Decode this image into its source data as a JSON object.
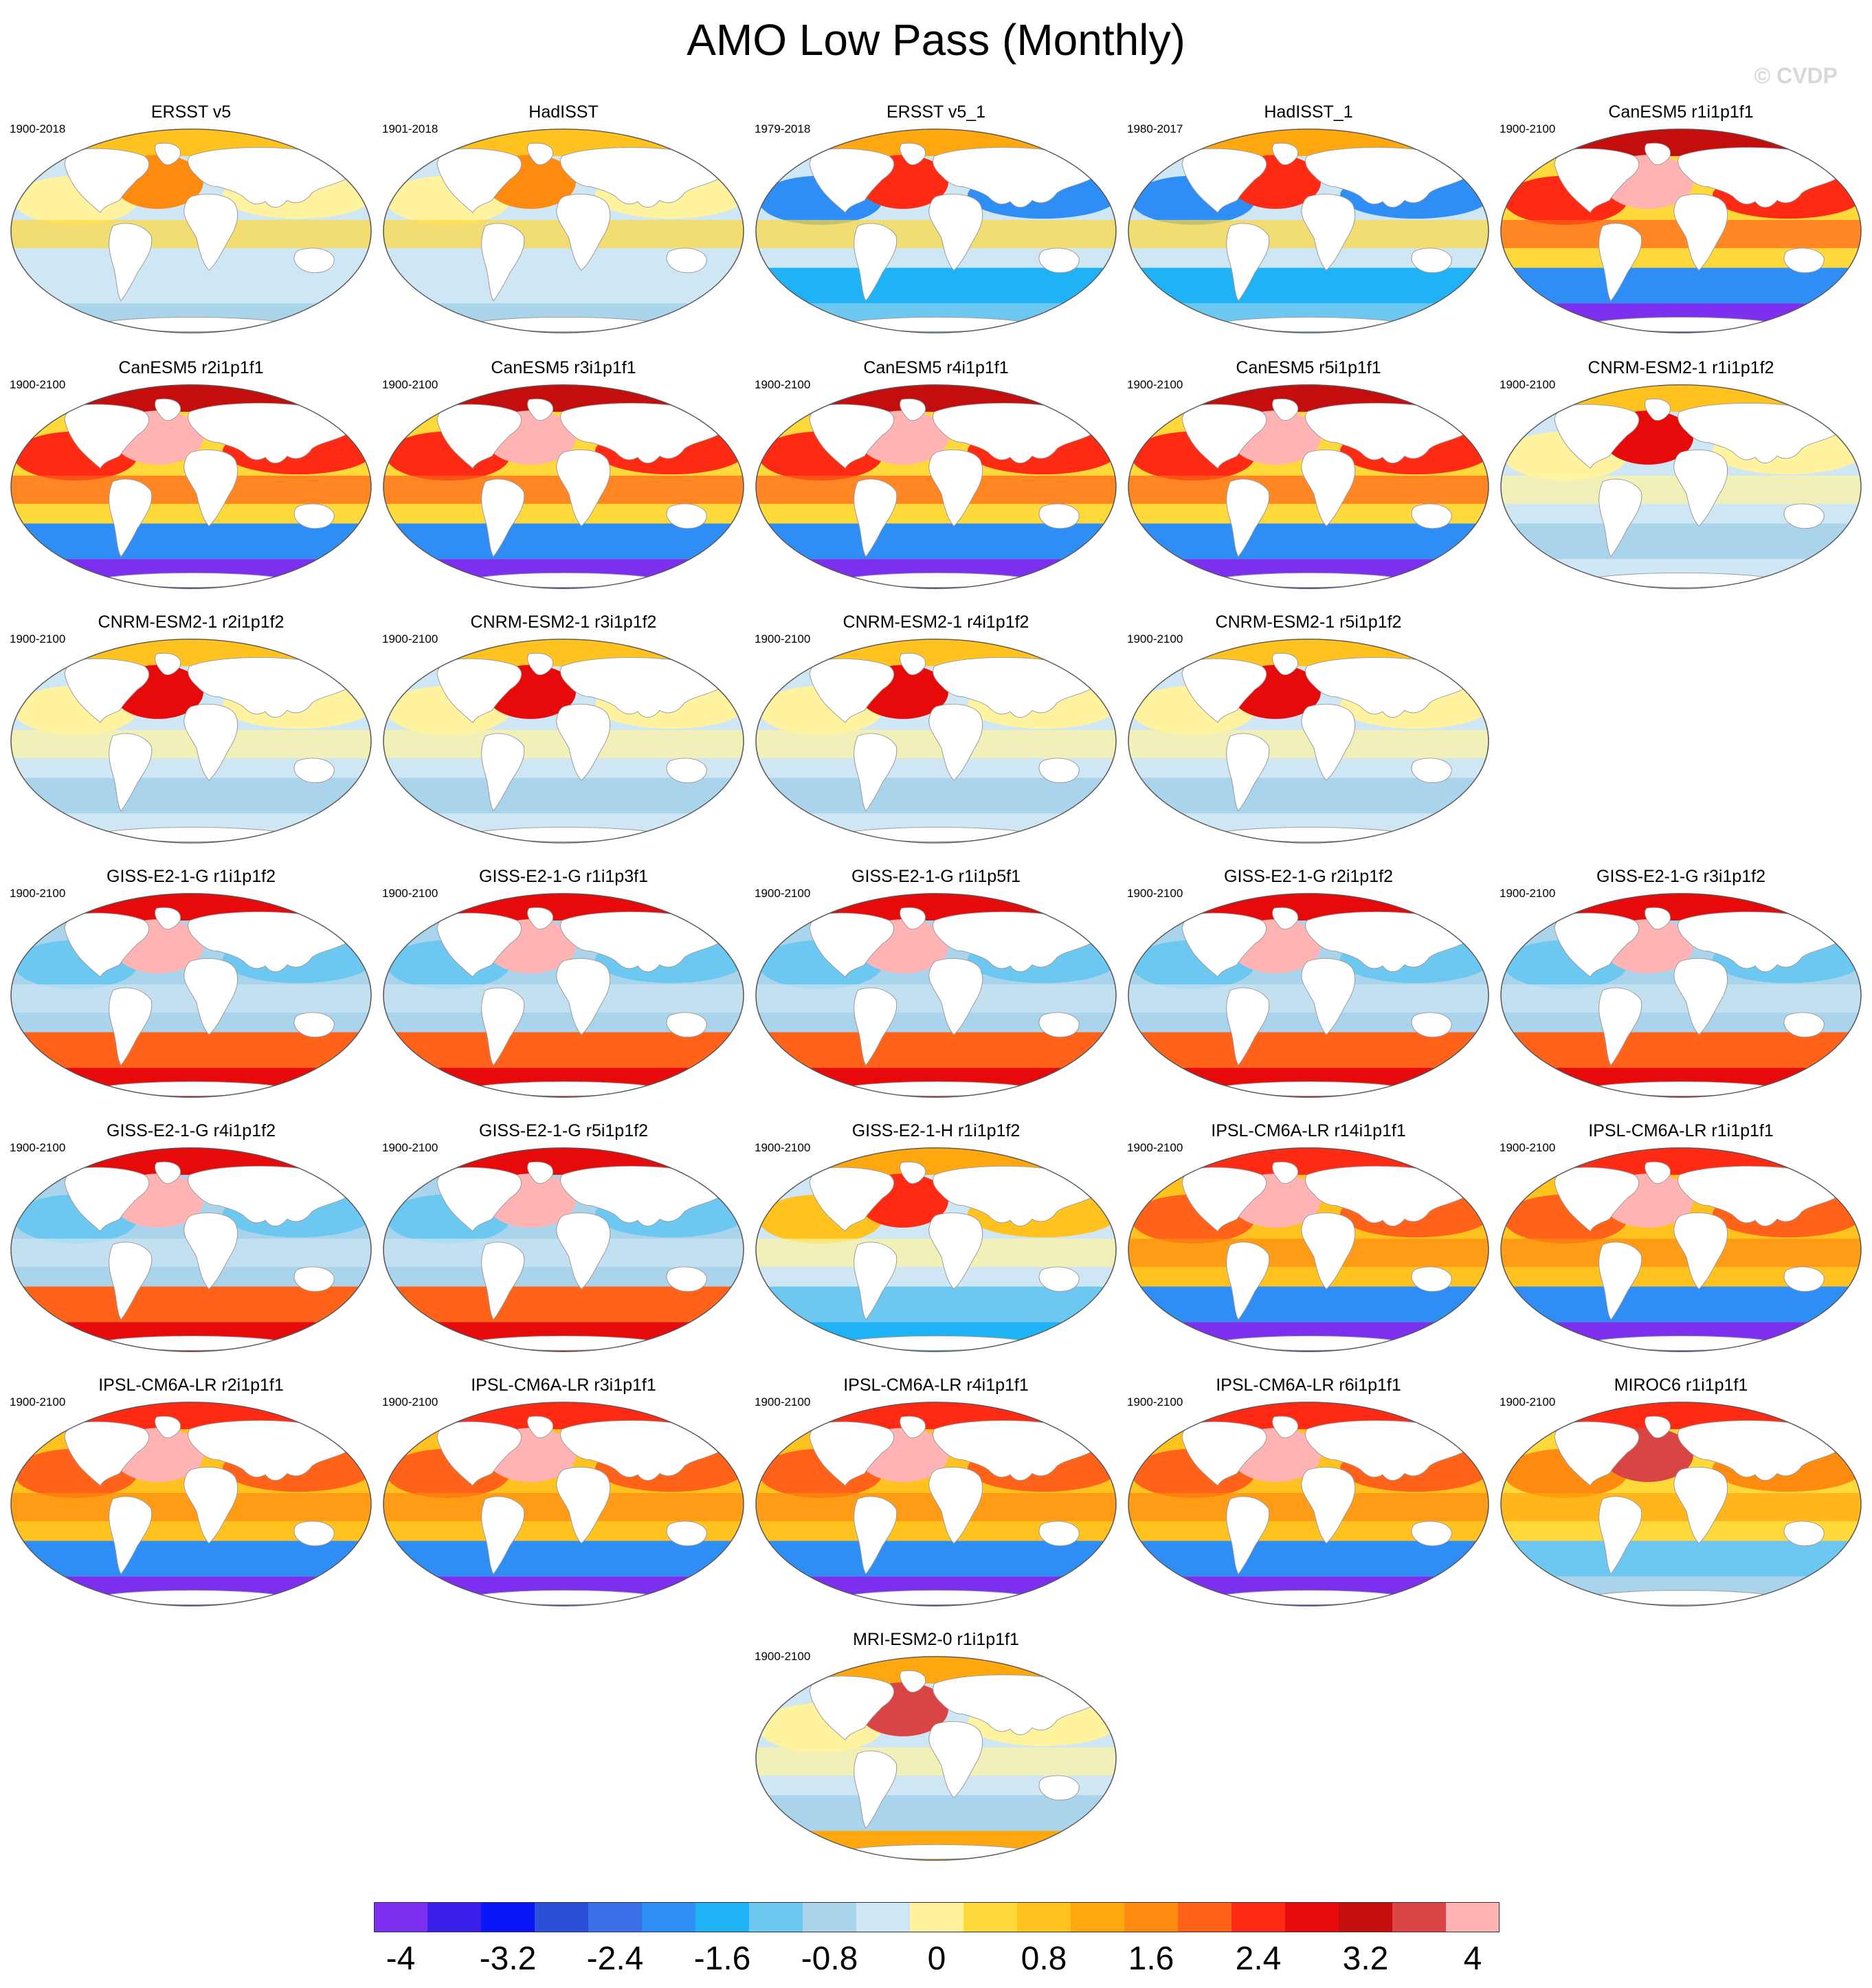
{
  "title": "AMO Low Pass (Monthly)",
  "watermark": "© CVDP",
  "colorbar": {
    "colors": [
      "#7d2ff0",
      "#3a1fe8",
      "#0a16f5",
      "#2a4fd9",
      "#3a6fe8",
      "#2f8ef5",
      "#1fb3f5",
      "#6cc8f0",
      "#a9d4ec",
      "#cfe6f4",
      "#fff3a0",
      "#ffd93a",
      "#ffc21f",
      "#ffa70f",
      "#ff8a10",
      "#ff6218",
      "#ff2a14",
      "#e60a0a",
      "#c40d0d",
      "#d94444",
      "#ffb3b3"
    ],
    "tick_labels": [
      "-4",
      "-3.2",
      "-2.4",
      "-1.6",
      "-0.8",
      "0",
      "0.8",
      "1.6",
      "2.4",
      "3.2",
      "4"
    ],
    "range": [
      -4.2,
      4.2
    ]
  },
  "panels": [
    {
      "title": "ERSST v5",
      "period": "1900-2018",
      "scheme": "obs"
    },
    {
      "title": "HadISST",
      "period": "1901-2018",
      "scheme": "obs"
    },
    {
      "title": "ERSST v5_1",
      "period": "1979-2018",
      "scheme": "obs_recent"
    },
    {
      "title": "HadISST_1",
      "period": "1980-2017",
      "scheme": "obs_recent"
    },
    {
      "title": "CanESM5 r1i1p1f1",
      "period": "1900-2100",
      "scheme": "canesm"
    },
    {
      "title": "CanESM5 r2i1p1f1",
      "period": "1900-2100",
      "scheme": "canesm"
    },
    {
      "title": "CanESM5 r3i1p1f1",
      "period": "1900-2100",
      "scheme": "canesm"
    },
    {
      "title": "CanESM5 r4i1p1f1",
      "period": "1900-2100",
      "scheme": "canesm"
    },
    {
      "title": "CanESM5 r5i1p1f1",
      "period": "1900-2100",
      "scheme": "canesm"
    },
    {
      "title": "CNRM-ESM2-1 r1i1p1f2",
      "period": "1900-2100",
      "scheme": "cnrm"
    },
    {
      "title": "CNRM-ESM2-1 r2i1p1f2",
      "period": "1900-2100",
      "scheme": "cnrm"
    },
    {
      "title": "CNRM-ESM2-1 r3i1p1f2",
      "period": "1900-2100",
      "scheme": "cnrm"
    },
    {
      "title": "CNRM-ESM2-1 r4i1p1f2",
      "period": "1900-2100",
      "scheme": "cnrm"
    },
    {
      "title": "CNRM-ESM2-1 r5i1p1f2",
      "period": "1900-2100",
      "scheme": "cnrm"
    },
    {
      "title": "GISS-E2-1-G r1i1p1f2",
      "period": "1900-2100",
      "scheme": "giss"
    },
    {
      "title": "GISS-E2-1-G r1i1p3f1",
      "period": "1900-2100",
      "scheme": "giss"
    },
    {
      "title": "GISS-E2-1-G r1i1p5f1",
      "period": "1900-2100",
      "scheme": "giss"
    },
    {
      "title": "GISS-E2-1-G r2i1p1f2",
      "period": "1900-2100",
      "scheme": "giss"
    },
    {
      "title": "GISS-E2-1-G r3i1p1f2",
      "period": "1900-2100",
      "scheme": "giss"
    },
    {
      "title": "GISS-E2-1-G r4i1p1f2",
      "period": "1900-2100",
      "scheme": "giss"
    },
    {
      "title": "GISS-E2-1-G r5i1p1f2",
      "period": "1900-2100",
      "scheme": "giss"
    },
    {
      "title": "GISS-E2-1-H r1i1p1f2",
      "period": "1900-2100",
      "scheme": "gissh"
    },
    {
      "title": "IPSL-CM6A-LR r14i1p1f1",
      "period": "1900-2100",
      "scheme": "ipsl"
    },
    {
      "title": "IPSL-CM6A-LR r1i1p1f1",
      "period": "1900-2100",
      "scheme": "ipsl"
    },
    {
      "title": "IPSL-CM6A-LR r2i1p1f1",
      "period": "1900-2100",
      "scheme": "ipsl"
    },
    {
      "title": "IPSL-CM6A-LR r3i1p1f1",
      "period": "1900-2100",
      "scheme": "ipsl"
    },
    {
      "title": "IPSL-CM6A-LR r4i1p1f1",
      "period": "1900-2100",
      "scheme": "ipsl"
    },
    {
      "title": "IPSL-CM6A-LR r6i1p1f1",
      "period": "1900-2100",
      "scheme": "ipsl"
    },
    {
      "title": "MIROC6 r1i1p1f1",
      "period": "1900-2100",
      "scheme": "miroc"
    },
    {
      "title": "MRI-ESM2-0 r1i1p1f1",
      "period": "1900-2100",
      "scheme": "mri"
    }
  ]
}
